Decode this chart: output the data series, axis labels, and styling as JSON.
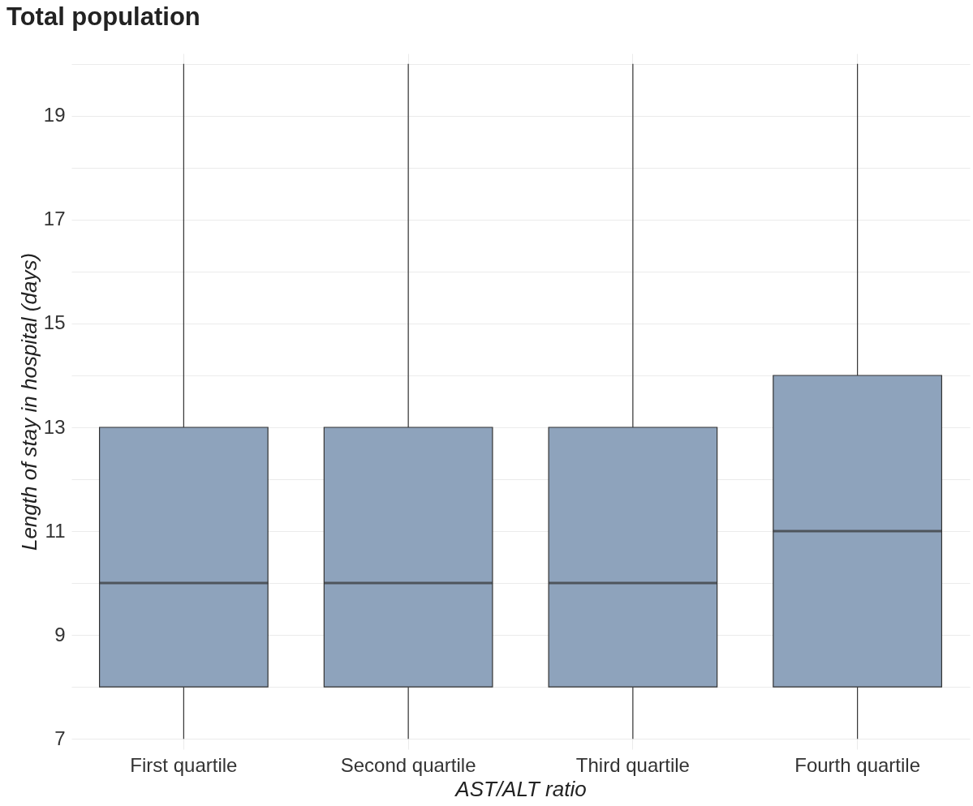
{
  "chart_data": {
    "type": "box",
    "title": "Total population",
    "xlabel": "AST/ALT ratio",
    "ylabel": "Length of stay in hospital (days)",
    "categories": [
      "First quartile",
      "Second quartile",
      "Third quartile",
      "Fourth quartile"
    ],
    "series": [
      {
        "color": "#8ea3bc",
        "boxes": [
          {
            "low": 7,
            "q1": 8,
            "median": 10,
            "q3": 13,
            "high": 20
          },
          {
            "low": 7,
            "q1": 8,
            "median": 10,
            "q3": 13,
            "high": 20
          },
          {
            "low": 7,
            "q1": 8,
            "median": 10,
            "q3": 13,
            "high": 20
          },
          {
            "low": 7,
            "q1": 8,
            "median": 11,
            "q3": 14,
            "high": 20
          }
        ]
      }
    ],
    "ylim": [
      6.8,
      20.2
    ],
    "yticks": [
      7,
      {
        "value": 8,
        "label": null
      },
      9,
      {
        "value": 10,
        "label": null
      },
      11,
      {
        "value": 12,
        "label": null
      },
      13,
      {
        "value": 14,
        "label": null
      },
      15,
      {
        "value": 16,
        "label": null
      },
      17,
      {
        "value": 18,
        "label": null
      },
      19,
      {
        "value": 20,
        "label": null
      }
    ],
    "grid": true
  }
}
